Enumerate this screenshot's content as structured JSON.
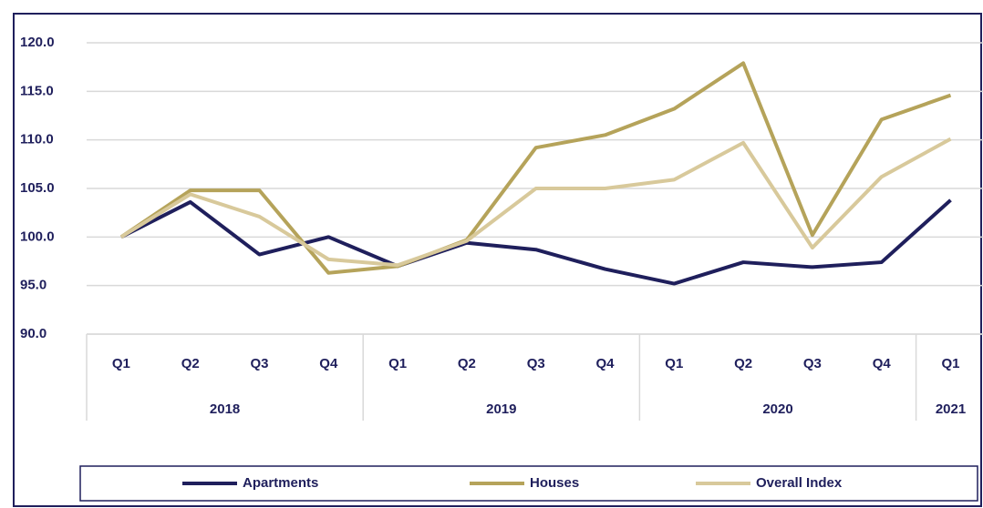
{
  "chart_data": {
    "type": "line",
    "categories": [
      "Q1",
      "Q2",
      "Q3",
      "Q4",
      "Q1",
      "Q2",
      "Q3",
      "Q4",
      "Q1",
      "Q2",
      "Q3",
      "Q4",
      "Q1"
    ],
    "year_groups": [
      {
        "label": "2018",
        "count": 4
      },
      {
        "label": "2019",
        "count": 4
      },
      {
        "label": "2020",
        "count": 4
      },
      {
        "label": "2021",
        "count": 1
      }
    ],
    "series": [
      {
        "name": "Apartments",
        "color": "#1f1f5c",
        "values": [
          100,
          103.6,
          98.2,
          100,
          97.0,
          99.4,
          98.7,
          96.7,
          95.2,
          97.4,
          96.9,
          97.4,
          103.8
        ]
      },
      {
        "name": "Houses",
        "color": "#b5a35a",
        "values": [
          100,
          104.8,
          104.8,
          96.3,
          97.0,
          99.7,
          109.2,
          110.5,
          113.2,
          117.9,
          100.2,
          112.1,
          114.6
        ]
      },
      {
        "name": "Overall Index",
        "color": "#d8c99b",
        "values": [
          100,
          104.4,
          102.1,
          97.7,
          97.1,
          99.6,
          105.0,
          105.0,
          105.9,
          109.7,
          98.9,
          106.2,
          110.1
        ]
      }
    ],
    "ylim": [
      90,
      120
    ],
    "yticks": [
      {
        "value": 90,
        "label": "90.0"
      },
      {
        "value": 95,
        "label": "95.0"
      },
      {
        "value": 100,
        "label": "100.0"
      },
      {
        "value": 105,
        "label": "105.0"
      },
      {
        "value": 110,
        "label": "110.0"
      },
      {
        "value": 115,
        "label": "115.0"
      },
      {
        "value": 120,
        "label": "120.0"
      }
    ],
    "grid": true,
    "legend": "bottom"
  }
}
